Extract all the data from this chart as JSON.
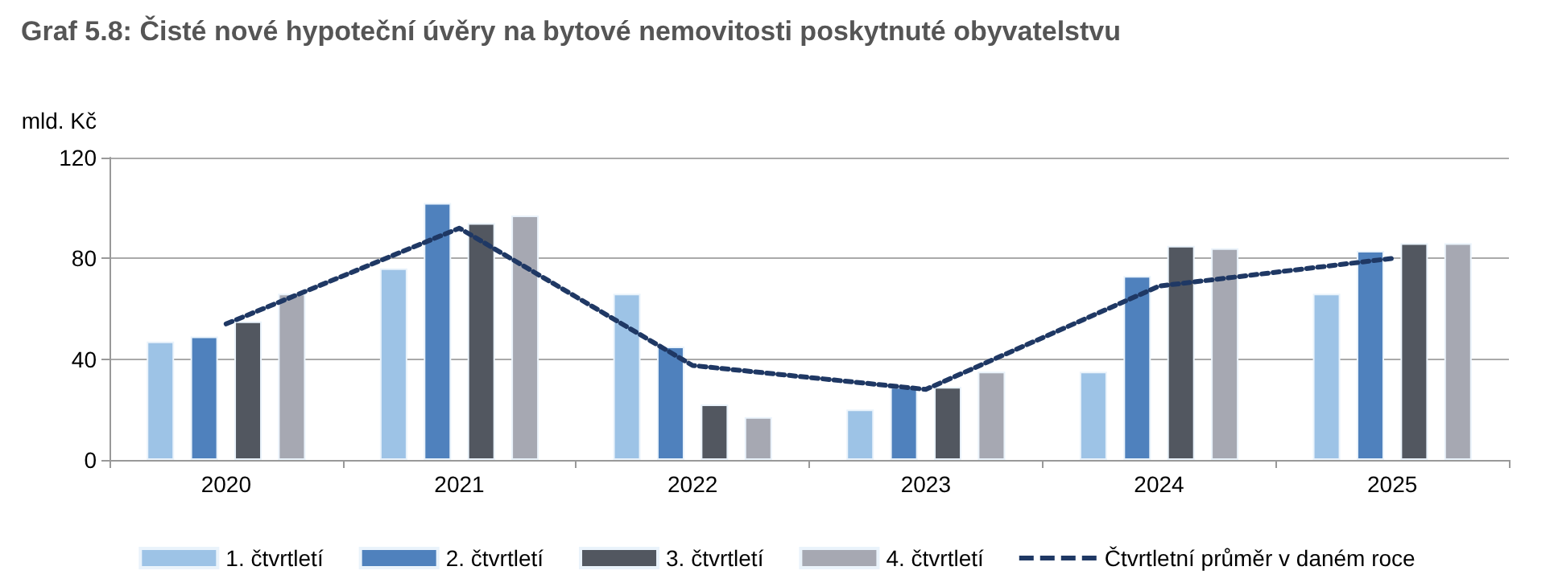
{
  "chart_data": {
    "type": "bar",
    "title": "Graf 5.8: Čisté nové hypoteční úvěry na bytové nemovitosti poskytnuté obyvatelstvu",
    "ylabel": "mld. Kč",
    "categories": [
      "2020",
      "2021",
      "2022",
      "2023",
      "2024",
      "2025"
    ],
    "series": [
      {
        "name": "1. čtvrtletí",
        "color": "#9dc3e6",
        "values": [
          47,
          76,
          66,
          20,
          35,
          66
        ]
      },
      {
        "name": "2. čtvrtletí",
        "color": "#4f81bd",
        "values": [
          49,
          102,
          45,
          29,
          73,
          83
        ]
      },
      {
        "name": "3. čtvrtletí",
        "color": "#525760",
        "values": [
          55,
          94,
          22,
          29,
          85,
          86
        ]
      },
      {
        "name": "4. čtvrtletí",
        "color": "#a6a8b2",
        "values": [
          66,
          97,
          17,
          35,
          84,
          86
        ]
      },
      {
        "name": "Čtvrtletní průměr v daném roce",
        "type": "line",
        "color": "#1f3864",
        "line_style": "dashed",
        "marker": "none",
        "values": [
          54,
          92,
          37.5,
          28,
          69,
          80
        ]
      }
    ],
    "ylim": [
      0,
      120
    ],
    "yticks": [
      0,
      40,
      80,
      120
    ],
    "grid": "y",
    "legend": "bottom"
  }
}
